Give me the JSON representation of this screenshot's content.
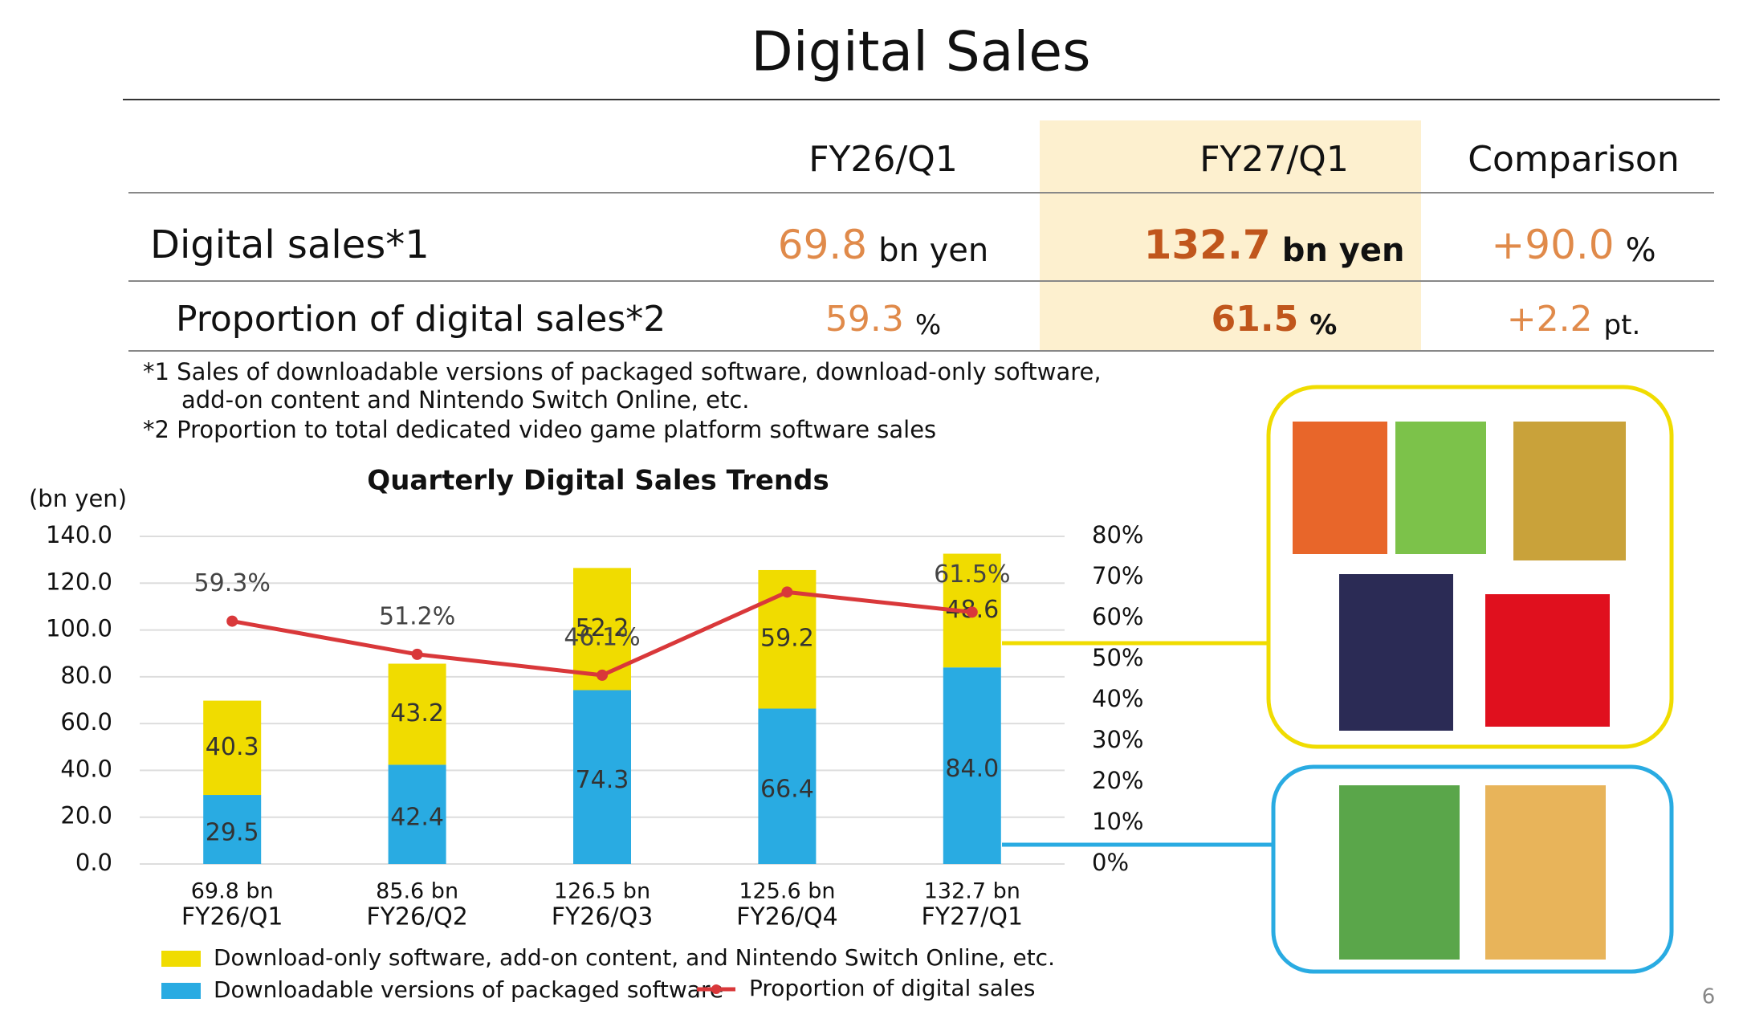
{
  "title": "Digital Sales",
  "table": {
    "columns": [
      "FY26/Q1",
      "FY27/Q1",
      "Comparison"
    ],
    "rows": [
      {
        "label": "Digital sales*1",
        "cells": [
          {
            "value": "69.8",
            "unit": "bn yen"
          },
          {
            "value": "132.7",
            "unit": "bn yen"
          },
          {
            "value": "+90.0",
            "unit": "%"
          }
        ]
      },
      {
        "label": "Proportion of digital sales*2",
        "cells": [
          {
            "value": "59.3",
            "unit": "%"
          },
          {
            "value": "61.5",
            "unit": "%"
          },
          {
            "value": "+2.2",
            "unit": "pt."
          }
        ]
      }
    ]
  },
  "notes": [
    "*1 Sales of downloadable versions of packaged software, download-only software,",
    "add-on content and Nintendo Switch Online, etc.",
    "*2 Proportion to total dedicated video game platform software sales"
  ],
  "chart_data": {
    "type": "bar",
    "title": "Quarterly Digital Sales Trends",
    "y_label": "(bn yen)",
    "categories": [
      "FY26/Q1",
      "FY26/Q2",
      "FY26/Q3",
      "FY26/Q4",
      "FY27/Q1"
    ],
    "totals": [
      69.8,
      85.6,
      126.5,
      125.6,
      132.7
    ],
    "total_labels": [
      "69.8 bn",
      "85.6 bn",
      "126.5 bn",
      "125.6 bn",
      "132.7 bn"
    ],
    "series": [
      {
        "name": "Downloadable versions of packaged software",
        "color": "#29abe2",
        "values": [
          29.5,
          42.4,
          74.3,
          66.4,
          84.0
        ],
        "value_labels": [
          "29.5",
          "42.4",
          "74.3",
          "66.4",
          "84.0"
        ]
      },
      {
        "name": "Download-only software, add-on content, and Nintendo Switch Online, etc.",
        "color": "#f0dc00",
        "values": [
          40.3,
          43.2,
          52.2,
          59.2,
          48.6
        ]
      },
      {
        "name": "Proportion of digital sales",
        "type": "line",
        "axis": "y2",
        "color": "#d9383a",
        "values": [
          59.3,
          51.2,
          46.1,
          66.4,
          61.5
        ],
        "value_labels": [
          "59.3%",
          "51.2%",
          "46.1%",
          null,
          "61.5%"
        ]
      }
    ],
    "ylim": [
      0,
      140
    ],
    "yticks": [
      {
        "value": 0,
        "label": "0.0"
      },
      {
        "value": 20,
        "label": "20.0"
      },
      {
        "value": 40,
        "label": "40.0"
      },
      {
        "value": 60,
        "label": "60.0"
      },
      {
        "value": 80,
        "label": "80.0"
      },
      {
        "value": 100,
        "label": "100.0"
      },
      {
        "value": 120,
        "label": "120.0"
      },
      {
        "value": 140,
        "label": "140.0"
      }
    ],
    "y2lim": [
      0,
      80
    ],
    "y2ticks": [
      {
        "value": 0,
        "label": "0%"
      },
      {
        "value": 10,
        "label": "10%"
      },
      {
        "value": 20,
        "label": "20%"
      },
      {
        "value": 30,
        "label": "30%"
      },
      {
        "value": 40,
        "label": "40%"
      },
      {
        "value": 50,
        "label": "50%"
      },
      {
        "value": 60,
        "label": "60%"
      },
      {
        "value": 70,
        "label": "70%"
      },
      {
        "value": 80,
        "label": "80%"
      }
    ],
    "grid": true
  },
  "page_number": "6"
}
